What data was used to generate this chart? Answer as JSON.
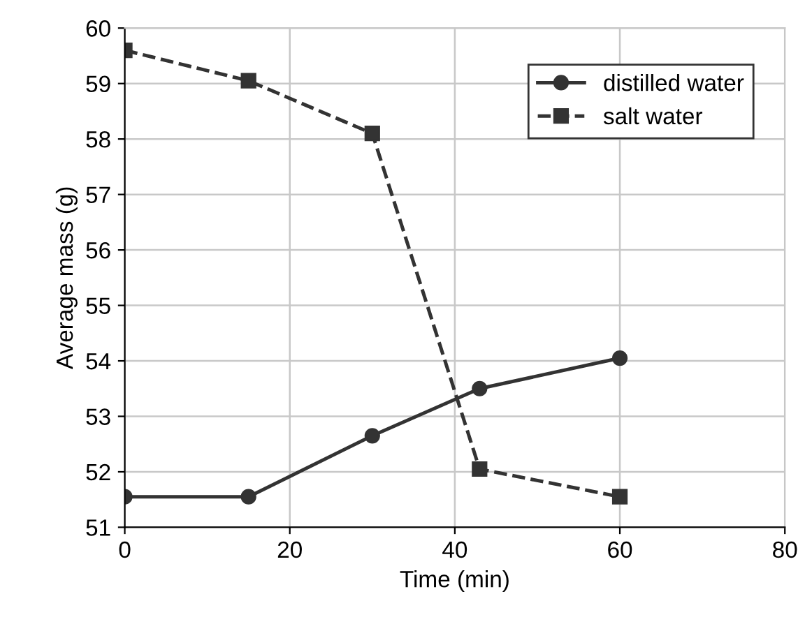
{
  "chart_data": {
    "type": "line",
    "xlabel": "Time (min)",
    "ylabel": "Average mass (g)",
    "x": [
      0,
      15,
      30,
      43,
      60
    ],
    "series": [
      {
        "name": "distilled water",
        "color": "#333333",
        "values": [
          51.55,
          51.55,
          52.65,
          53.5,
          54.05
        ],
        "marker": "circle",
        "line_style": "solid"
      },
      {
        "name": "salt water",
        "color": "#333333",
        "values": [
          59.6,
          59.05,
          58.1,
          52.05,
          51.55
        ],
        "marker": "square",
        "line_style": "dashed"
      }
    ],
    "xlim": [
      0,
      80
    ],
    "xticks": [
      0,
      20,
      40,
      60,
      80
    ],
    "ylim": [
      51,
      60
    ],
    "yticks": [
      51,
      52,
      53,
      54,
      55,
      56,
      57,
      58,
      59,
      60
    ],
    "grid": true,
    "legend": "top right"
  }
}
